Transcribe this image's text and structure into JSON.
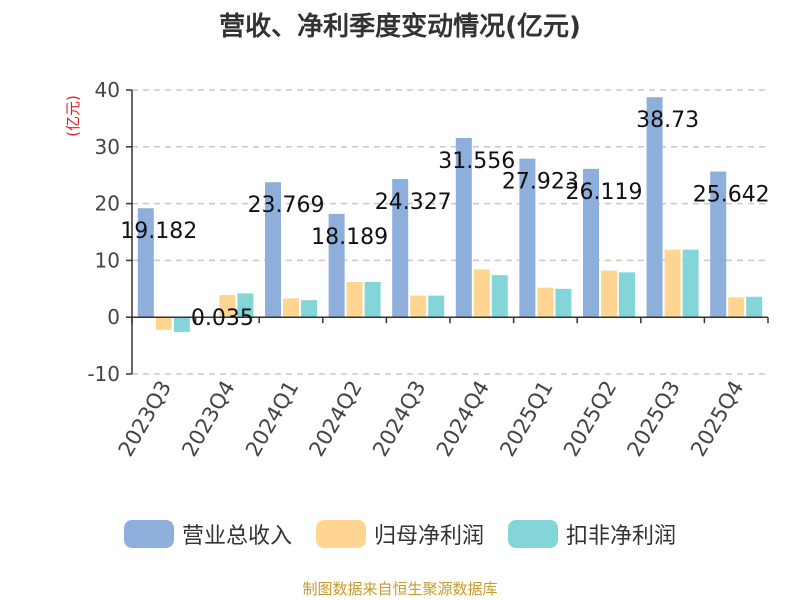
{
  "chart_data": {
    "type": "bar",
    "title": "营收、净利季度变动情况(亿元)",
    "unit_label": "(亿元)",
    "categories": [
      "2023Q3",
      "2023Q4",
      "2024Q1",
      "2024Q2",
      "2024Q3",
      "2024Q4",
      "2025Q1",
      "2025Q2",
      "2025Q3",
      "2025Q4"
    ],
    "series": [
      {
        "name": "营业总收入",
        "color": "#8eafdc",
        "values": [
          19.182,
          0.035,
          23.769,
          18.189,
          24.327,
          31.556,
          27.923,
          26.119,
          38.73,
          25.642
        ]
      },
      {
        "name": "归母净利润",
        "color": "#ffd591",
        "values": [
          -2.2,
          3.9,
          3.3,
          6.2,
          3.8,
          8.4,
          5.2,
          8.2,
          11.9,
          3.5
        ]
      },
      {
        "name": "扣非净利润",
        "color": "#83d5d8",
        "values": [
          -2.6,
          4.2,
          3.0,
          6.2,
          3.8,
          7.4,
          5.0,
          7.9,
          11.9,
          3.6
        ]
      }
    ],
    "data_labels": [
      "19.182",
      "0.035",
      "23.769",
      "18.189",
      "24.327",
      "31.556",
      "27.923",
      "26.119",
      "38.73",
      "25.642"
    ],
    "ylim": [
      -10,
      40
    ],
    "yticks": [
      -10,
      0,
      10,
      20,
      30,
      40
    ],
    "grid": true,
    "legend_position": "bottom"
  },
  "footer": {
    "source": "制图数据来自恒生聚源数据库"
  }
}
